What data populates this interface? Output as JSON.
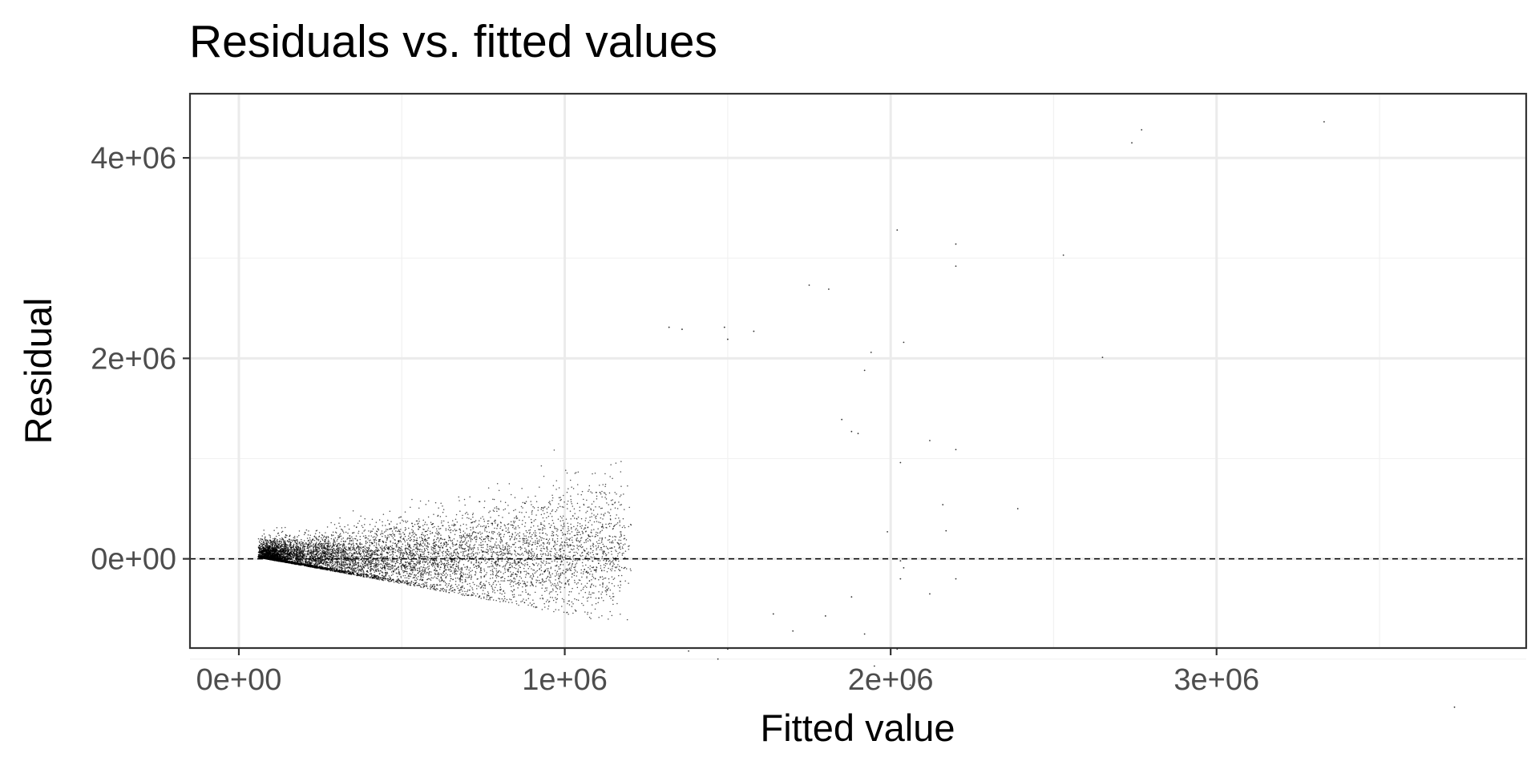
{
  "chart_data": {
    "type": "scatter",
    "title": "Residuals vs. fitted values",
    "xlabel": "Fitted value",
    "ylabel": "Residual",
    "xlim": [
      -150000,
      3950000
    ],
    "ylim": [
      -890000,
      4640000
    ],
    "x_ticks": [
      0,
      1000000,
      2000000,
      3000000
    ],
    "x_tick_labels": [
      "0e+00",
      "1e+06",
      "2e+06",
      "3e+06"
    ],
    "y_ticks": [
      0,
      2000000,
      4000000
    ],
    "y_tick_labels": [
      "0e+00",
      "2e+06",
      "4e+06"
    ],
    "x_minor_gridlines": [
      500000,
      1500000,
      2500000,
      3500000
    ],
    "y_minor_gridlines": [
      -1000000,
      1000000,
      3000000
    ],
    "grid": true,
    "legend": "none",
    "reference_line": {
      "y": 0,
      "style": "dashed"
    },
    "colors": {
      "point": "#000000",
      "grid_major": "#ebebeb",
      "grid_minor": "#f2f2f2",
      "tick_label": "#4d4d4d",
      "border": "#333333"
    },
    "bulk_cloud": {
      "n_points": 9000,
      "x_range": [
        60000,
        1400000
      ],
      "description": "dense cloud of small points with residual spread increasing with fitted value"
    },
    "sparse_points": [
      [
        2740000,
        4150000
      ],
      [
        2770000,
        4280000
      ],
      [
        3330000,
        4360000
      ],
      [
        2020000,
        3280000
      ],
      [
        2200000,
        3140000
      ],
      [
        2200000,
        2920000
      ],
      [
        2530000,
        3030000
      ],
      [
        1750000,
        2730000
      ],
      [
        1810000,
        2690000
      ],
      [
        1940000,
        2060000
      ],
      [
        2040000,
        2160000
      ],
      [
        2650000,
        2010000
      ],
      [
        1920000,
        1880000
      ],
      [
        1580000,
        2270000
      ],
      [
        1320000,
        2310000
      ],
      [
        1360000,
        2290000
      ],
      [
        1490000,
        2310000
      ],
      [
        1500000,
        2190000
      ],
      [
        2200000,
        1090000
      ],
      [
        2120000,
        1180000
      ],
      [
        2030000,
        960000
      ],
      [
        1900000,
        1250000
      ],
      [
        1880000,
        1270000
      ],
      [
        1850000,
        1390000
      ],
      [
        2390000,
        500000
      ],
      [
        2160000,
        540000
      ],
      [
        2170000,
        280000
      ],
      [
        1990000,
        270000
      ],
      [
        2030000,
        -20000
      ],
      [
        2040000,
        -90000
      ],
      [
        2030000,
        -200000
      ],
      [
        2200000,
        -200000
      ],
      [
        2120000,
        -350000
      ],
      [
        1880000,
        -380000
      ],
      [
        1800000,
        -570000
      ],
      [
        1920000,
        -750000
      ],
      [
        2010000,
        -890000
      ],
      [
        2020000,
        -900000
      ],
      [
        1950000,
        -1070000
      ],
      [
        2060000,
        -1260000
      ],
      [
        3730000,
        -1480000
      ],
      [
        1700000,
        -720000
      ],
      [
        1640000,
        -550000
      ],
      [
        1500000,
        -900000
      ],
      [
        1470000,
        -1000000
      ],
      [
        1380000,
        -920000
      ]
    ]
  }
}
